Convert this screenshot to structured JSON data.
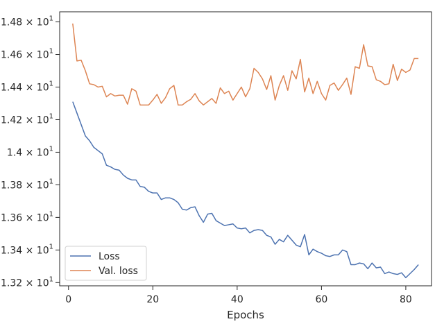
{
  "chart_data": {
    "type": "line",
    "title": "",
    "xlabel": "Epochs",
    "ylabel": "",
    "xlim": [
      -2.1,
      86.1
    ],
    "ylim": [
      13.18,
      14.862
    ],
    "grid": false,
    "legend_position": "lower-left",
    "x_ticks": [
      0,
      20,
      40,
      60,
      80
    ],
    "x_tick_labels": [
      "0",
      "20",
      "40",
      "60",
      "80"
    ],
    "y_ticks": [
      13.2,
      13.4,
      13.6,
      13.8,
      14.0,
      14.2,
      14.4,
      14.6,
      14.8
    ],
    "y_tick_labels": [
      [
        "1.32",
        "1"
      ],
      [
        "1.34",
        "1"
      ],
      [
        "1.36",
        "1"
      ],
      [
        "1.38",
        "1"
      ],
      [
        "1.4",
        "1"
      ],
      [
        "1.42",
        "1"
      ],
      [
        "1.44",
        "1"
      ],
      [
        "1.46",
        "1"
      ],
      [
        "1.48",
        "1"
      ]
    ],
    "y_tick_base": "10",
    "series": [
      {
        "name": "Loss",
        "color": "#4c72b0",
        "x": [
          1,
          2,
          3,
          4,
          5,
          6,
          7,
          8,
          9,
          10,
          11,
          12,
          13,
          14,
          15,
          16,
          17,
          18,
          19,
          20,
          21,
          22,
          23,
          24,
          25,
          26,
          27,
          28,
          29,
          30,
          31,
          32,
          33,
          34,
          35,
          36,
          37,
          38,
          39,
          40,
          41,
          42,
          43,
          44,
          45,
          46,
          47,
          48,
          49,
          50,
          51,
          52,
          53,
          54,
          55,
          56,
          57,
          58,
          59,
          60,
          61,
          62,
          63,
          64,
          65,
          66,
          67,
          68,
          69,
          70,
          71,
          72,
          73,
          74,
          75,
          76,
          77,
          78,
          79,
          80,
          81,
          82,
          83
        ],
        "values": [
          14.31,
          14.24,
          14.17,
          14.1,
          14.07,
          14.03,
          14.01,
          13.99,
          13.92,
          13.91,
          13.895,
          13.89,
          13.86,
          13.84,
          13.83,
          13.83,
          13.79,
          13.785,
          13.76,
          13.75,
          13.75,
          13.71,
          13.72,
          13.72,
          13.71,
          13.69,
          13.65,
          13.645,
          13.66,
          13.665,
          13.61,
          13.57,
          13.62,
          13.625,
          13.58,
          13.565,
          13.55,
          13.555,
          13.56,
          13.535,
          13.53,
          13.535,
          13.505,
          13.52,
          13.525,
          13.52,
          13.49,
          13.48,
          13.435,
          13.465,
          13.45,
          13.49,
          13.46,
          13.43,
          13.42,
          13.495,
          13.37,
          13.405,
          13.39,
          13.38,
          13.365,
          13.36,
          13.37,
          13.37,
          13.4,
          13.39,
          13.31,
          13.31,
          13.32,
          13.315,
          13.285,
          13.32,
          13.29,
          13.295,
          13.255,
          13.265,
          13.255,
          13.25,
          13.26,
          13.23,
          13.255,
          13.28,
          13.31
        ]
      },
      {
        "name": "Val. loss",
        "color": "#dd8452",
        "x": [
          1,
          2,
          3,
          4,
          5,
          6,
          7,
          8,
          9,
          10,
          11,
          12,
          13,
          14,
          15,
          16,
          17,
          18,
          19,
          20,
          21,
          22,
          23,
          24,
          25,
          26,
          27,
          28,
          29,
          30,
          31,
          32,
          33,
          34,
          35,
          36,
          37,
          38,
          39,
          40,
          41,
          42,
          43,
          44,
          45,
          46,
          47,
          48,
          49,
          50,
          51,
          52,
          53,
          54,
          55,
          56,
          57,
          58,
          59,
          60,
          61,
          62,
          63,
          64,
          65,
          66,
          67,
          68,
          69,
          70,
          71,
          72,
          73,
          74,
          75,
          76,
          77,
          78,
          79,
          80,
          81,
          82,
          83
        ],
        "values": [
          14.79,
          14.56,
          14.565,
          14.5,
          14.42,
          14.415,
          14.4,
          14.405,
          14.34,
          14.36,
          14.345,
          14.35,
          14.35,
          14.295,
          14.39,
          14.375,
          14.29,
          14.29,
          14.29,
          14.32,
          14.355,
          14.3,
          14.335,
          14.39,
          14.41,
          14.29,
          14.29,
          14.31,
          14.325,
          14.36,
          14.315,
          14.29,
          14.31,
          14.33,
          14.3,
          14.395,
          14.36,
          14.375,
          14.32,
          14.36,
          14.4,
          14.34,
          14.39,
          14.515,
          14.49,
          14.45,
          14.385,
          14.47,
          14.32,
          14.41,
          14.47,
          14.38,
          14.5,
          14.45,
          14.57,
          14.37,
          14.455,
          14.36,
          14.435,
          14.36,
          14.32,
          14.41,
          14.425,
          14.38,
          14.415,
          14.455,
          14.355,
          14.525,
          14.515,
          14.66,
          14.53,
          14.525,
          14.445,
          14.435,
          14.415,
          14.42,
          14.54,
          14.44,
          14.51,
          14.49,
          14.505,
          14.575,
          14.575
        ]
      }
    ]
  }
}
